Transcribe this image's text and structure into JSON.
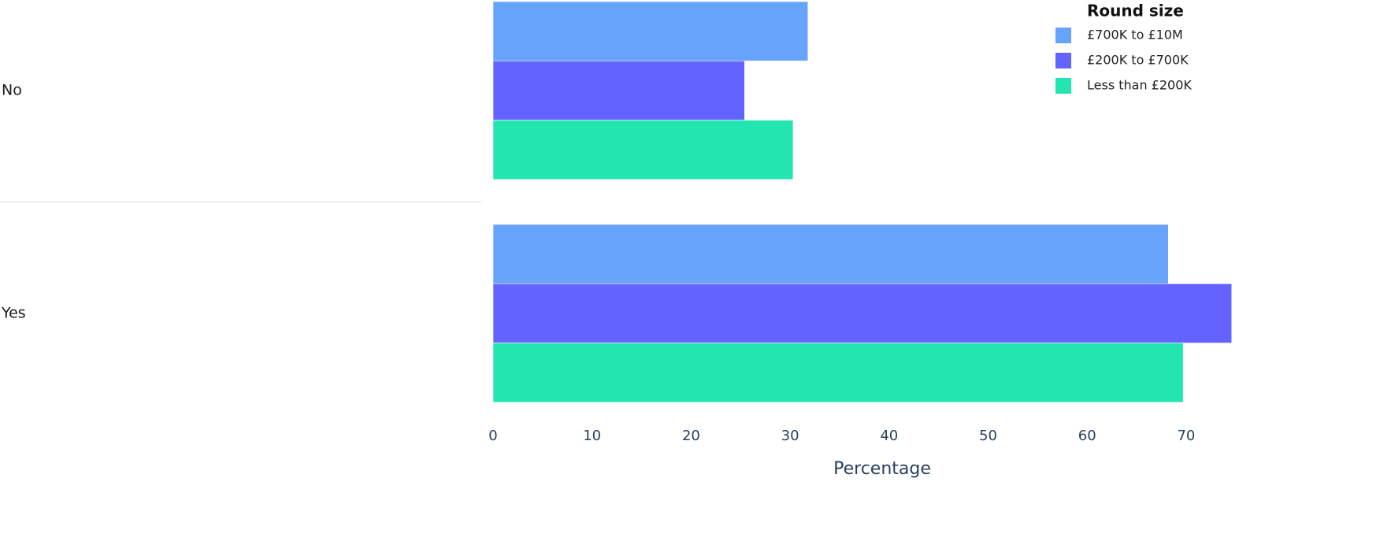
{
  "chart_data": {
    "type": "hbar",
    "categories": [
      "No",
      "Yes"
    ],
    "series": [
      {
        "name": "£700K to £10M",
        "color": "#66a3fb",
        "values": [
          31.8,
          68.2
        ]
      },
      {
        "name": "£200K to £700K",
        "color": "#6363ff",
        "values": [
          25.4,
          74.6
        ]
      },
      {
        "name": "Less than £200K",
        "color": "#23e5af",
        "values": [
          30.3,
          69.7
        ]
      }
    ],
    "legend_title": "Round size",
    "xlabel": "Percentage",
    "xlim": [
      0,
      74.7
    ],
    "xticks": [
      0,
      10,
      20,
      30,
      40,
      50,
      60,
      70
    ]
  }
}
